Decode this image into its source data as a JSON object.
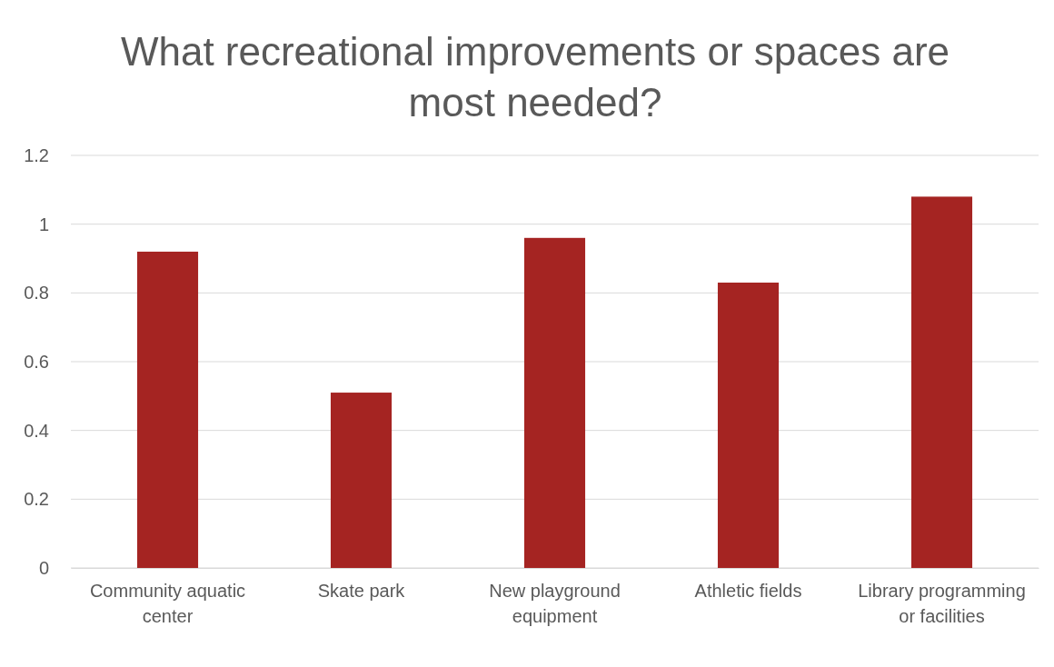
{
  "chart_data": {
    "type": "bar",
    "title": "What recreational improvements or spaces are most needed?",
    "categories": [
      "Community aquatic center",
      "Skate park",
      "New playground equipment",
      "Athletic fields",
      "Library programming or facilities"
    ],
    "values": [
      0.92,
      0.51,
      0.96,
      0.83,
      1.08
    ],
    "color": "#a52422",
    "ylim": [
      0,
      1.2
    ],
    "yticks": [
      0,
      {
        "value": 0.2,
        "label": "0.2"
      },
      {
        "value": 0.4,
        "label": "0.4"
      },
      {
        "value": 0.6,
        "label": "0.6"
      },
      {
        "value": 0.8,
        "label": "0.8"
      },
      1,
      {
        "value": 1.2,
        "label": "1.2"
      }
    ],
    "grid": "y"
  }
}
